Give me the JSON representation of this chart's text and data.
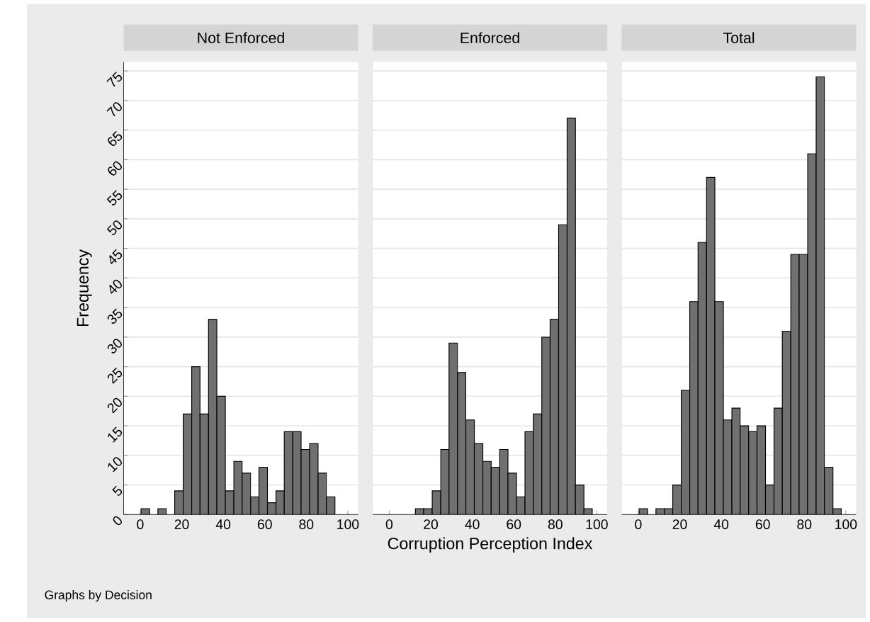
{
  "chart_data": [
    {
      "type": "histogram",
      "title": "Not Enforced",
      "ylabel": "Frequency",
      "annotations": [
        "Graphs by Decision"
      ],
      "color": "#707070",
      "grid": "y",
      "bins": [
        0.4,
        4.5,
        8.5,
        12.6,
        16.6,
        20.7,
        24.8,
        28.8,
        32.9,
        36.9,
        41.0,
        45.1,
        49.1,
        53.2,
        57.2,
        61.3,
        65.4,
        69.4,
        73.5,
        77.5,
        81.6,
        85.7,
        89.7,
        93.8,
        97.8
      ],
      "values": [
        1,
        0,
        1,
        0,
        4,
        17,
        25,
        17,
        33,
        20,
        4,
        9,
        7,
        3,
        8,
        2,
        4,
        14,
        14,
        11,
        12,
        7,
        3,
        0
      ],
      "xlim": [
        -8,
        105
      ],
      "ylim": [
        0,
        76.5
      ],
      "xticks": [
        0,
        20,
        40,
        60,
        80,
        100
      ],
      "yticks": [
        0,
        5,
        10,
        15,
        20,
        25,
        30,
        35,
        40,
        45,
        50,
        55,
        60,
        65,
        70,
        75
      ]
    },
    {
      "type": "histogram",
      "title": "Enforced",
      "xlabel": "Corruption Perception Index",
      "color": "#707070",
      "grid": "y",
      "tick_labels": "x",
      "bins": [
        0.4,
        4.5,
        8.5,
        12.6,
        16.6,
        20.7,
        24.8,
        28.8,
        32.9,
        36.9,
        41.0,
        45.1,
        49.1,
        53.2,
        57.2,
        61.3,
        65.4,
        69.4,
        73.5,
        77.5,
        81.6,
        85.7,
        89.7,
        93.8,
        97.8
      ],
      "values": [
        0,
        0,
        0,
        1,
        1,
        4,
        11,
        29,
        24,
        16,
        12,
        9,
        8,
        11,
        7,
        3,
        14,
        17,
        30,
        33,
        49,
        67,
        5,
        1
      ],
      "xlim": [
        -8,
        105
      ],
      "ylim": [
        0,
        76.5
      ],
      "xticks": [
        0,
        20,
        40,
        60,
        80,
        100
      ],
      "yticks": [
        0,
        5,
        10,
        15,
        20,
        25,
        30,
        35,
        40,
        45,
        50,
        55,
        60,
        65,
        70,
        75
      ]
    },
    {
      "type": "histogram",
      "title": "Total",
      "color": "#707070",
      "grid": "y",
      "tick_labels": "x",
      "bins": [
        0.4,
        4.5,
        8.5,
        12.6,
        16.6,
        20.7,
        24.8,
        28.8,
        32.9,
        36.9,
        41.0,
        45.1,
        49.1,
        53.2,
        57.2,
        61.3,
        65.4,
        69.4,
        73.5,
        77.5,
        81.6,
        85.7,
        89.7,
        93.8,
        97.8
      ],
      "values": [
        1,
        0,
        1,
        1,
        5,
        21,
        36,
        46,
        57,
        36,
        16,
        18,
        15,
        14,
        15,
        5,
        18,
        31,
        44,
        44,
        61,
        74,
        8,
        1
      ],
      "xlim": [
        -8,
        105
      ],
      "ylim": [
        0,
        76.5
      ],
      "xticks": [
        0,
        20,
        40,
        60,
        80,
        100
      ],
      "yticks": [
        0,
        5,
        10,
        15,
        20,
        25,
        30,
        35,
        40,
        45,
        50,
        55,
        60,
        65,
        70,
        75
      ]
    }
  ]
}
